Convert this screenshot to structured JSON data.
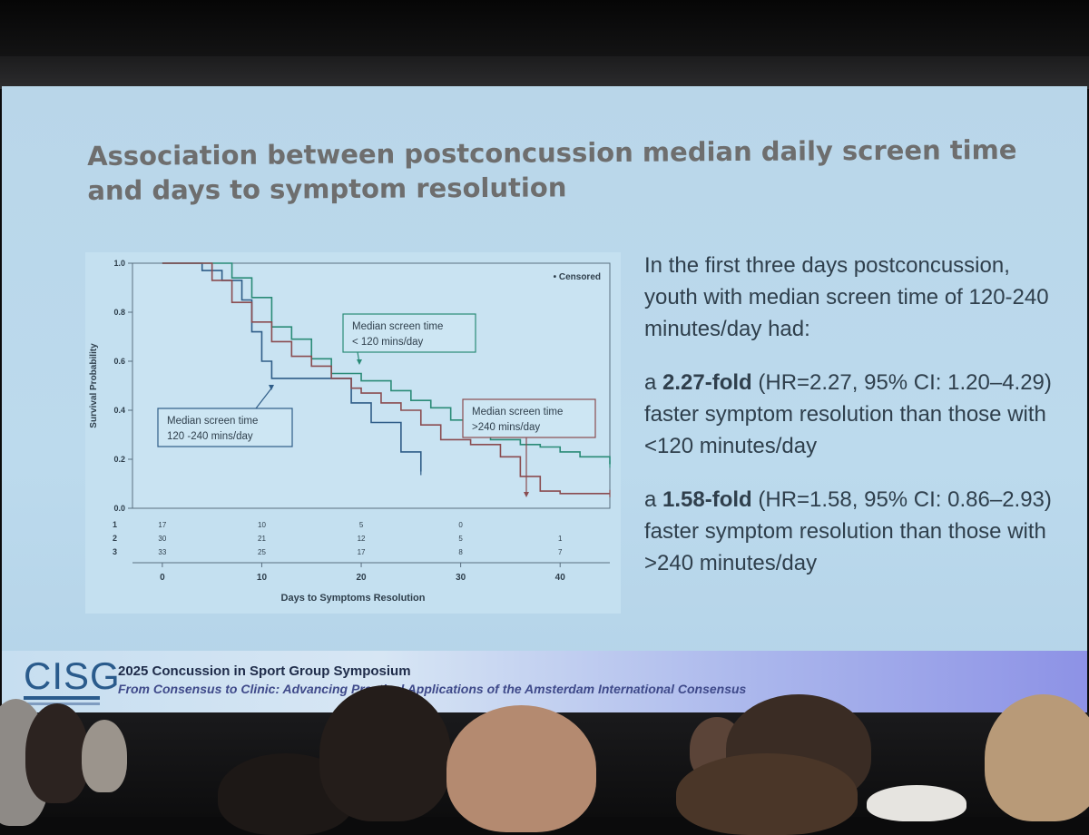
{
  "slide": {
    "title_line1": "Association between postconcussion median daily screen time",
    "title_line2": "and days to symptom resolution",
    "paragraph1": "In the first three days postconcussion, youth with median screen time of 120-240 minutes/day had:",
    "point1": {
      "bold": "2.27-fold",
      "text": " (HR=2.27, 95% CI: 1.20–4.29) faster symptom resolution than those with <120 minutes/day"
    },
    "point2": {
      "bold": "1.58-fold",
      "text": " (HR=1.58, 95% CI: 0.86–2.93) faster symptom resolution than those with >240 minutes/day"
    }
  },
  "footer": {
    "logo": "CISG",
    "title": "2025 Concussion in Sport Group Symposium",
    "subtitle": "From Consensus to Clinic: Advancing Practical Applications of the Amsterdam International Consensus"
  },
  "chart_data": {
    "type": "line",
    "xlabel": "Days to Symptoms Resolution",
    "ylabel": "Survival Probability",
    "xlim": [
      -3,
      45
    ],
    "ylim": [
      0,
      1
    ],
    "x_ticks": [
      0,
      10,
      20,
      30,
      40
    ],
    "y_ticks": [
      "0.0",
      "0.2",
      "0.4",
      "0.6",
      "0.8",
      "1.0"
    ],
    "legend": "• Censored",
    "series": [
      {
        "name": "Median screen time 120 -240 mins/day",
        "color": "#2f5d88",
        "x": [
          0,
          3,
          4,
          6,
          8,
          9,
          10,
          11,
          13,
          15,
          17,
          19,
          21,
          24,
          26
        ],
        "y": [
          1.0,
          1.0,
          0.97,
          0.93,
          0.85,
          0.72,
          0.6,
          0.53,
          0.53,
          0.53,
          0.53,
          0.43,
          0.35,
          0.23,
          0.15
        ]
      },
      {
        "name": "Median screen time < 120 mins/day",
        "color": "#2a8b77",
        "x": [
          0,
          6,
          7,
          9,
          11,
          13,
          15,
          17,
          20,
          21,
          23,
          25,
          27,
          29,
          31,
          33,
          36,
          38,
          40,
          42,
          45
        ],
        "y": [
          1.0,
          1.0,
          0.94,
          0.86,
          0.74,
          0.69,
          0.61,
          0.55,
          0.52,
          0.52,
          0.48,
          0.44,
          0.41,
          0.36,
          0.31,
          0.28,
          0.26,
          0.25,
          0.23,
          0.21,
          0.18
        ]
      },
      {
        "name": "Median screen time >240 mins/day",
        "color": "#8a4c50",
        "x": [
          0,
          4,
          5,
          7,
          9,
          11,
          13,
          15,
          17,
          19,
          20,
          22,
          24,
          26,
          28,
          31,
          34,
          36,
          38,
          40,
          45
        ],
        "y": [
          1.0,
          1.0,
          0.93,
          0.84,
          0.76,
          0.68,
          0.62,
          0.58,
          0.53,
          0.49,
          0.47,
          0.43,
          0.4,
          0.34,
          0.28,
          0.26,
          0.21,
          0.13,
          0.07,
          0.06,
          0.06
        ]
      }
    ],
    "annotations": [
      {
        "line1": "Median screen time",
        "line2": "< 120 mins/day"
      },
      {
        "line1": "Median screen time",
        "line2": "120 -240 mins/day"
      },
      {
        "line1": "Median screen time",
        "line2": ">240 mins/day"
      }
    ],
    "risk_table": {
      "rows": [
        "1",
        "2",
        "3"
      ],
      "columns": [
        {
          "x": 0,
          "values": [
            "17",
            "30",
            "33"
          ]
        },
        {
          "x": 10,
          "values": [
            "10",
            "21",
            "25"
          ]
        },
        {
          "x": 20,
          "values": [
            "5",
            "12",
            "17"
          ]
        },
        {
          "x": 30,
          "values": [
            "0",
            "5",
            "8"
          ]
        },
        {
          "x": 40,
          "values": [
            "",
            "1",
            "7"
          ]
        }
      ]
    }
  }
}
